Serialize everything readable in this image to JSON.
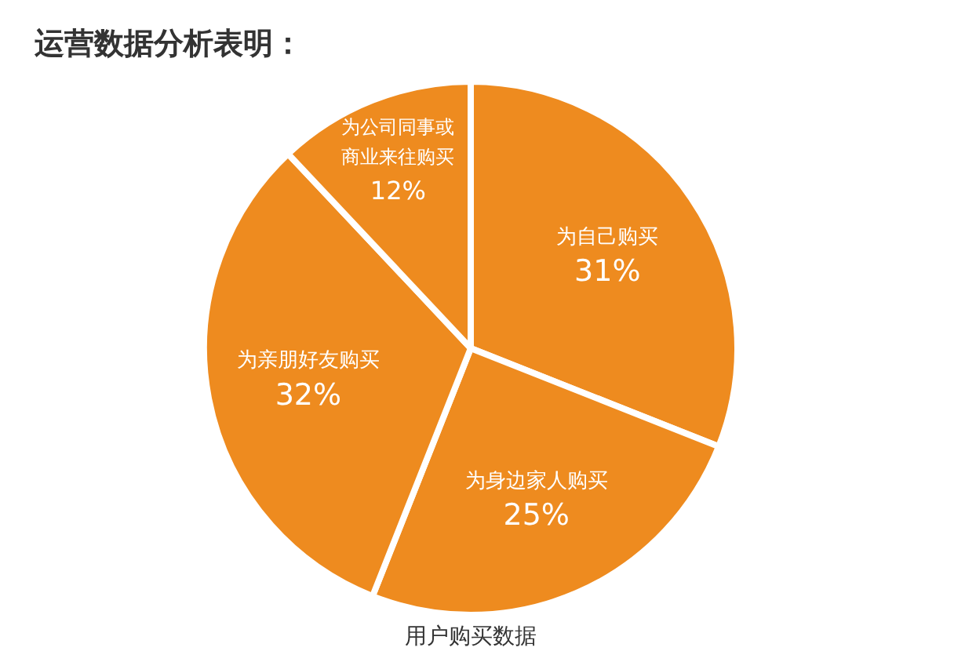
{
  "chart_data": {
    "type": "pie",
    "title": "运营数据分析表明：",
    "categories": [
      "为自己购买",
      "为身边家人购买",
      "为亲朋好友购买",
      "为公司同事或商业来往购买"
    ],
    "values": [
      31,
      25,
      32,
      12
    ],
    "value_labels": [
      "31%",
      "25%",
      "32%",
      "12%"
    ],
    "colors": [
      "#ee8b1f",
      "#ee8b1f",
      "#ee8b1f",
      "#ee8b1f"
    ],
    "annotations": [
      "用户购买数据"
    ],
    "legend": false
  }
}
